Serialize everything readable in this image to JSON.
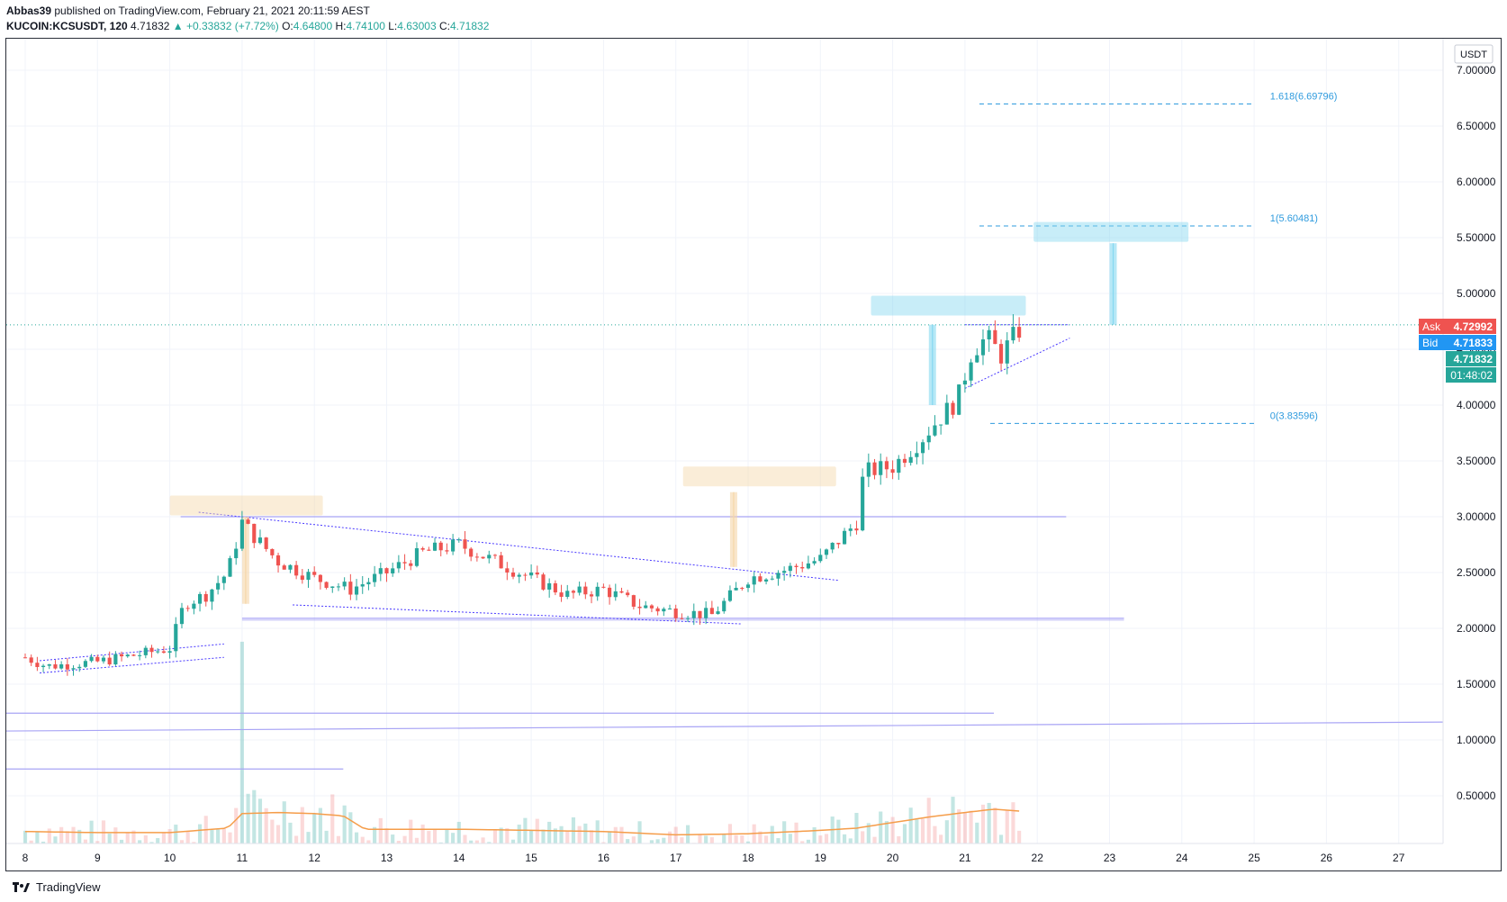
{
  "header": {
    "author": "Abbas39",
    "published": "published on TradingView.com, February 21, 2021 20:11:59 AEST",
    "symbol": "KUCOIN:KCSUSDT",
    "interval": "120",
    "last": "4.71832",
    "change": "▲ +0.33832 (+7.72%)",
    "open_label": "O:",
    "open": "4.64800",
    "high_label": "H:",
    "high": "4.74100",
    "low_label": "L:",
    "low": "4.63003",
    "close_label": "C:",
    "close": "4.71832"
  },
  "footer": {
    "brand": "TradingView"
  },
  "price_tags": {
    "currency": "USDT",
    "ask_label": "Ask",
    "ask": "4.72992",
    "bid_label": "Bid",
    "bid": "4.71833",
    "last": "4.71832",
    "countdown": "01:48:02"
  },
  "colors": {
    "up": "#26a69a",
    "down": "#ef5350",
    "trend": "#4a3aff",
    "hline": "#a8a4f5",
    "fib": "#2f9bde",
    "measure_blue": "#86d8f0",
    "measure_orange": "#f5d6a8",
    "ma": "#f59d4a"
  },
  "chart_data": {
    "type": "candlestick",
    "title": "",
    "xlabel": "",
    "ylabel": "",
    "x_unit": "day of February 2021",
    "ylim": [
      0.0,
      7.2
    ],
    "grid": true,
    "y_ticks": [
      "7.00000",
      "6.50000",
      "6.00000",
      "5.50000",
      "5.00000",
      "4.50000",
      "4.00000",
      "3.50000",
      "3.00000",
      "2.50000",
      "2.00000",
      "1.50000",
      "1.00000",
      "0.50000"
    ],
    "x_ticks": [
      "8",
      "9",
      "10",
      "11",
      "12",
      "13",
      "14",
      "15",
      "16",
      "17",
      "18",
      "19",
      "20",
      "21",
      "22",
      "23",
      "24",
      "25",
      "26",
      "27"
    ],
    "price_anchors": {
      "x": [
        8.0,
        8.3,
        9.0,
        9.6,
        10.0,
        10.2,
        10.5,
        10.8,
        11.0,
        11.2,
        11.5,
        12.0,
        12.5,
        13.0,
        13.5,
        14.0,
        14.5,
        15.0,
        15.5,
        16.0,
        16.5,
        17.0,
        17.5,
        18.0,
        18.5,
        19.0,
        19.5,
        19.6,
        20.0,
        20.4,
        20.6,
        20.9,
        21.1,
        21.3,
        21.5,
        21.8
      ],
      "close": [
        1.74,
        1.66,
        1.7,
        1.77,
        1.82,
        2.22,
        2.3,
        2.5,
        2.95,
        2.8,
        2.6,
        2.45,
        2.35,
        2.5,
        2.68,
        2.75,
        2.6,
        2.45,
        2.3,
        2.35,
        2.2,
        2.15,
        2.12,
        2.45,
        2.52,
        2.62,
        2.95,
        3.4,
        3.45,
        3.7,
        3.85,
        4.05,
        4.5,
        4.6,
        4.45,
        4.72
      ]
    },
    "volume_ma_anchors": {
      "x": [
        8.0,
        9.0,
        10.0,
        10.8,
        11.0,
        11.5,
        12.0,
        12.4,
        12.7,
        13.0,
        14.0,
        15.0,
        16.0,
        17.0,
        18.0,
        19.0,
        19.5,
        20.0,
        20.5,
        21.0,
        21.4,
        21.8
      ],
      "value": [
        0.18,
        0.17,
        0.17,
        0.21,
        0.34,
        0.35,
        0.34,
        0.32,
        0.2,
        0.2,
        0.2,
        0.19,
        0.18,
        0.15,
        0.16,
        0.19,
        0.21,
        0.26,
        0.31,
        0.35,
        0.38,
        0.36
      ]
    },
    "fibonacci": [
      {
        "label": "1.618(6.69796)",
        "value": 6.69796
      },
      {
        "label": "1(5.60481)",
        "value": 5.60481
      },
      {
        "label": "0(3.83596)",
        "value": 3.83596
      }
    ],
    "horizontal_levels": [
      3.0,
      2.09,
      1.24,
      0.74
    ],
    "last_price": 4.71832,
    "ask": 4.72992,
    "bid": 4.71833
  }
}
